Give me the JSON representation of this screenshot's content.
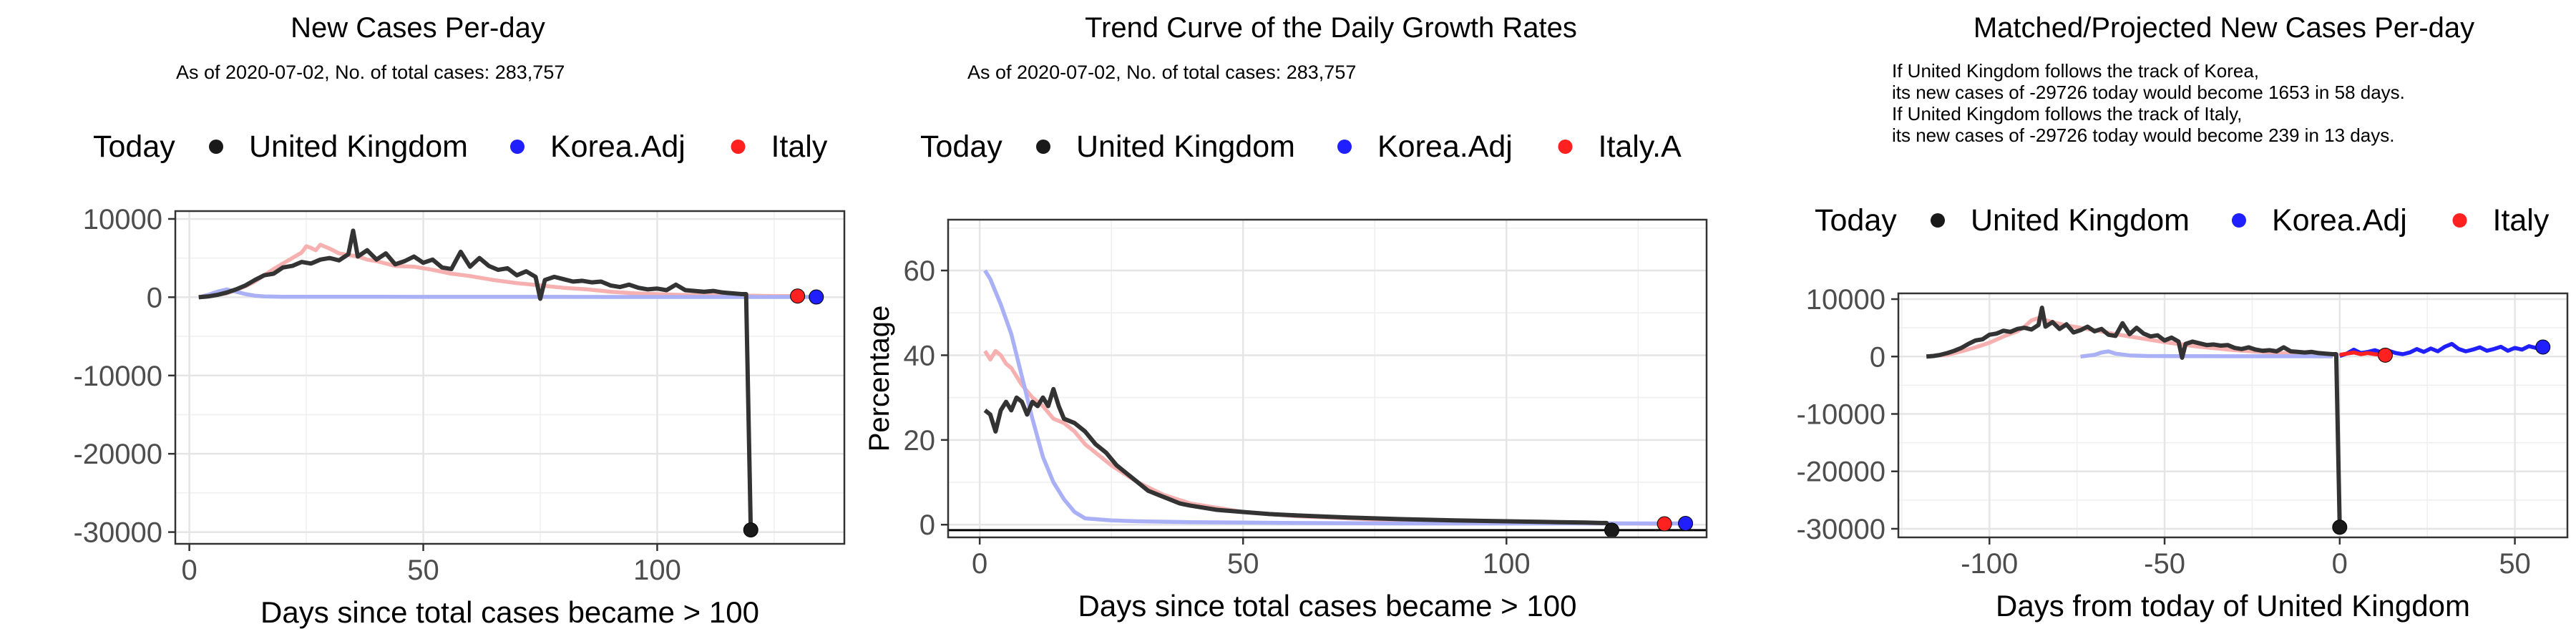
{
  "colors": {
    "uk": "#1a1a1a",
    "korea": "#1f1fff",
    "italy": "#ff2020",
    "uk_line": "#333333",
    "korea_line": "#aab0f5",
    "italy_line": "#f7b0b0",
    "grid": "#e5e5e5",
    "panel_border": "#333333"
  },
  "chart_data": [
    {
      "type": "line",
      "title": "New Cases Per-day",
      "subtitle": "As of 2020-07-02, No. of total cases: 283,757",
      "xlabel": "Days since total cases became > 100",
      "ylabel": "",
      "legend_title": "Today",
      "legend_position": "top",
      "legend_items": [
        "United Kingdom",
        "Korea.Adj",
        "Italy"
      ],
      "xlim": [
        -3,
        140
      ],
      "ylim": [
        -31500,
        11000
      ],
      "x_ticks": [
        0,
        50,
        100
      ],
      "y_ticks": [
        10000,
        0,
        -10000,
        -20000,
        -30000
      ],
      "y_tick_labels": [
        "10000",
        "0",
        "-10000",
        "-20000",
        "-30000"
      ],
      "grid": true,
      "series": [
        {
          "name": "Italy",
          "color_key": "italy_line",
          "x": [
            2,
            5,
            8,
            10,
            12,
            14,
            16,
            18,
            20,
            22,
            24,
            25,
            26,
            27,
            28,
            30,
            32,
            34,
            36,
            38,
            40,
            44,
            48,
            52,
            56,
            60,
            65,
            70,
            75,
            80,
            85,
            90,
            95,
            100,
            105,
            110,
            115,
            120,
            125,
            130
          ],
          "y": [
            0,
            200,
            500,
            900,
            1400,
            2000,
            2800,
            3600,
            4300,
            5000,
            5700,
            6500,
            6300,
            6000,
            6700,
            6200,
            5600,
            5400,
            5200,
            4800,
            4600,
            4000,
            3900,
            3500,
            3000,
            2700,
            2200,
            1800,
            1500,
            1200,
            1000,
            700,
            500,
            400,
            300,
            250,
            200,
            200,
            150,
            150
          ]
        },
        {
          "name": "Korea.Adj",
          "color_key": "korea_line",
          "x": [
            2,
            4,
            6,
            8,
            10,
            12,
            14,
            16,
            18,
            20,
            30,
            40,
            50,
            60,
            70,
            80,
            90,
            100,
            110,
            120,
            130,
            134
          ],
          "y": [
            0,
            300,
            700,
            1000,
            700,
            400,
            200,
            100,
            80,
            60,
            50,
            50,
            40,
            40,
            40,
            40,
            30,
            30,
            30,
            30,
            30,
            30
          ]
        },
        {
          "name": "United Kingdom",
          "color_key": "uk_line",
          "x": [
            2,
            4,
            6,
            8,
            10,
            12,
            14,
            16,
            18,
            20,
            22,
            24,
            26,
            28,
            30,
            32,
            34,
            35,
            36,
            38,
            40,
            42,
            44,
            46,
            48,
            50,
            52,
            54,
            56,
            58,
            60,
            62,
            64,
            66,
            68,
            70,
            72,
            74,
            75,
            76,
            78,
            80,
            82,
            84,
            86,
            88,
            90,
            92,
            94,
            96,
            98,
            100,
            102,
            104,
            106,
            108,
            110,
            112,
            114,
            116,
            118,
            119,
            120
          ],
          "y": [
            0,
            100,
            300,
            600,
            1000,
            1500,
            2200,
            2800,
            3000,
            3800,
            4000,
            4500,
            4300,
            4800,
            5000,
            4700,
            5500,
            8500,
            5200,
            6000,
            4800,
            5600,
            4200,
            4600,
            5200,
            4400,
            4800,
            3800,
            3600,
            5800,
            3900,
            5000,
            4000,
            3500,
            3700,
            2800,
            3300,
            2600,
            -200,
            2200,
            2600,
            2300,
            2000,
            2100,
            1900,
            2000,
            1500,
            1300,
            1600,
            1200,
            1000,
            1100,
            900,
            1600,
            900,
            800,
            700,
            800,
            600,
            500,
            400,
            400,
            -29726
          ]
        }
      ],
      "today_points": [
        {
          "name": "United Kingdom",
          "x": 120,
          "y": -29726,
          "color_key": "uk"
        },
        {
          "name": "Italy",
          "x": 130,
          "y": 150,
          "color_key": "italy"
        },
        {
          "name": "Korea.Adj",
          "x": 134,
          "y": 30,
          "color_key": "korea"
        }
      ]
    },
    {
      "type": "line",
      "title": "Trend Curve of the Daily Growth Rates",
      "subtitle": "As of 2020-07-02, No. of total cases: 283,757",
      "xlabel": "Days since total cases became > 100",
      "ylabel": "Percentage",
      "legend_title": "Today",
      "legend_position": "top",
      "legend_items": [
        "United Kingdom",
        "Korea.Adj",
        "Italy.A"
      ],
      "xlim": [
        -6,
        138
      ],
      "ylim": [
        -3,
        72
      ],
      "x_ticks": [
        0,
        50,
        100
      ],
      "y_ticks": [
        60,
        40,
        20,
        0
      ],
      "y_tick_labels": [
        "60",
        "40",
        "20",
        "0"
      ],
      "grid": true,
      "hline": -1.3,
      "series": [
        {
          "name": "Italy",
          "color_key": "italy_line",
          "x": [
            1,
            2,
            3,
            4,
            5,
            6,
            8,
            10,
            12,
            14,
            16,
            18,
            20,
            25,
            30,
            35,
            40,
            45,
            50,
            60,
            70,
            80,
            90,
            100,
            110,
            120,
            130
          ],
          "y": [
            41,
            39,
            41,
            40,
            38,
            37,
            33,
            30,
            28,
            25,
            24,
            22,
            19,
            14,
            10,
            7,
            5,
            4,
            3,
            2,
            1.5,
            1,
            0.8,
            0.6,
            0.4,
            0.3,
            0.2
          ]
        },
        {
          "name": "Korea.Adj",
          "color_key": "korea_line",
          "x": [
            1,
            2,
            4,
            6,
            8,
            10,
            12,
            14,
            16,
            18,
            20,
            25,
            30,
            40,
            50,
            60,
            80,
            100,
            120,
            134
          ],
          "y": [
            60,
            58,
            52,
            45,
            35,
            25,
            16,
            10,
            6,
            3,
            1.5,
            1,
            0.8,
            0.6,
            0.5,
            0.4,
            0.3,
            0.3,
            0.3,
            0.3
          ]
        },
        {
          "name": "United Kingdom",
          "color_key": "uk_line",
          "x": [
            1,
            2,
            3,
            4,
            5,
            6,
            7,
            8,
            9,
            10,
            11,
            12,
            13,
            14,
            15,
            16,
            18,
            20,
            22,
            24,
            26,
            28,
            30,
            32,
            34,
            36,
            38,
            40,
            45,
            50,
            55,
            60,
            70,
            80,
            90,
            100,
            110,
            115,
            118,
            119,
            120
          ],
          "y": [
            27,
            26,
            22,
            27,
            29,
            27,
            30,
            29,
            26,
            29,
            28,
            30,
            28,
            32,
            28,
            25,
            24,
            22,
            19,
            17,
            14,
            12,
            10,
            8,
            7,
            6,
            5,
            4.5,
            3.5,
            3,
            2.5,
            2.2,
            1.7,
            1.3,
            1,
            0.8,
            0.6,
            0.5,
            0.4,
            0.4,
            -1.3
          ]
        }
      ],
      "today_points": [
        {
          "name": "United Kingdom",
          "x": 120,
          "y": -1.3,
          "color_key": "uk"
        },
        {
          "name": "Italy",
          "x": 130,
          "y": 0.2,
          "color_key": "italy"
        },
        {
          "name": "Korea.Adj",
          "x": 134,
          "y": 0.3,
          "color_key": "korea"
        }
      ]
    },
    {
      "type": "line",
      "title": "Matched/Projected New Cases Per-day",
      "subtitle": "",
      "notes": [
        "If United Kingdom follows the track of Korea,",
        "its new cases of -29726 today would become 1653 in 58 days.",
        "If United Kingdom follows the track of Italy,",
        "its new cases of -29726 today would become 239 in 13 days."
      ],
      "xlabel": "Days from today of United Kingdom",
      "ylabel": "",
      "legend_title": "Today",
      "legend_position": "top",
      "legend_items": [
        "United Kingdom",
        "Korea.Adj",
        "Italy"
      ],
      "xlim": [
        -126,
        65
      ],
      "ylim": [
        -31500,
        11000
      ],
      "x_ticks": [
        -100,
        -50,
        0,
        50
      ],
      "y_ticks": [
        10000,
        0,
        -10000,
        -20000,
        -30000
      ],
      "y_tick_labels": [
        "10000",
        "0",
        "-10000",
        "-20000",
        "-30000"
      ],
      "grid": true,
      "series": [
        {
          "name": "Italy",
          "color_key": "italy_line",
          "x": [
            -118,
            -112,
            -108,
            -104,
            -100,
            -96,
            -92,
            -90,
            -88,
            -86,
            -82,
            -78,
            -74,
            -70,
            -64,
            -58,
            -50,
            -40,
            -30,
            -20,
            -10,
            -4
          ],
          "y": [
            0,
            300,
            900,
            1600,
            2400,
            3500,
            4400,
            5200,
            6300,
            6700,
            6000,
            5400,
            5000,
            4600,
            3900,
            3300,
            2500,
            1700,
            1100,
            700,
            400,
            300
          ]
        },
        {
          "name": "Korea.Adj",
          "color_key": "korea_line",
          "x": [
            -74,
            -70,
            -68,
            -66,
            -64,
            -60,
            -55,
            -50,
            -40,
            -30,
            -20,
            -10,
            -2
          ],
          "y": [
            0,
            300,
            700,
            900,
            500,
            200,
            100,
            80,
            60,
            50,
            40,
            40,
            30
          ]
        },
        {
          "name": "Korea.Adj projected",
          "color_key": "korea",
          "x": [
            0,
            2,
            4,
            6,
            8,
            10,
            12,
            14,
            16,
            18,
            20,
            22,
            24,
            26,
            28,
            30,
            32,
            34,
            36,
            38,
            40,
            42,
            44,
            46,
            48,
            50,
            52,
            54,
            56,
            58
          ],
          "y": [
            100,
            500,
            1200,
            600,
            800,
            1100,
            700,
            1000,
            600,
            400,
            700,
            1300,
            800,
            1400,
            900,
            1700,
            2200,
            1300,
            900,
            1200,
            1600,
            1000,
            1300,
            1700,
            1000,
            1500,
            1200,
            1800,
            1500,
            1653
          ]
        },
        {
          "name": "Italy projected",
          "color_key": "italy",
          "x": [
            0,
            2,
            4,
            6,
            8,
            10,
            12,
            13
          ],
          "y": [
            300,
            500,
            700,
            400,
            600,
            400,
            300,
            239
          ]
        },
        {
          "name": "United Kingdom",
          "color_key": "uk_line",
          "x": [
            -118,
            -116,
            -114,
            -112,
            -110,
            -108,
            -106,
            -104,
            -102,
            -100,
            -98,
            -96,
            -94,
            -92,
            -90,
            -88,
            -86,
            -85,
            -84,
            -82,
            -80,
            -78,
            -76,
            -74,
            -72,
            -70,
            -68,
            -66,
            -64,
            -62,
            -60,
            -58,
            -56,
            -54,
            -52,
            -50,
            -48,
            -46,
            -45,
            -44,
            -42,
            -40,
            -38,
            -36,
            -34,
            -32,
            -30,
            -28,
            -26,
            -24,
            -22,
            -20,
            -18,
            -16,
            -14,
            -12,
            -10,
            -8,
            -6,
            -4,
            -2,
            -1,
            0
          ],
          "y": [
            0,
            100,
            300,
            600,
            1000,
            1500,
            2200,
            2800,
            3000,
            3800,
            4000,
            4500,
            4300,
            4800,
            5000,
            4700,
            5500,
            8500,
            5200,
            6000,
            4800,
            5600,
            4200,
            4600,
            5200,
            4400,
            4800,
            3800,
            3600,
            5800,
            3900,
            5000,
            4000,
            3500,
            3700,
            2800,
            3300,
            2600,
            -200,
            2200,
            2600,
            2300,
            2000,
            2100,
            1900,
            2000,
            1500,
            1300,
            1600,
            1200,
            1000,
            1100,
            900,
            1600,
            900,
            800,
            700,
            800,
            600,
            500,
            400,
            400,
            -29726
          ]
        }
      ],
      "today_points": [
        {
          "name": "United Kingdom",
          "x": 0,
          "y": -29726,
          "color_key": "uk"
        },
        {
          "name": "Italy",
          "x": 13,
          "y": 239,
          "color_key": "italy"
        },
        {
          "name": "Korea.Adj",
          "x": 58,
          "y": 1653,
          "color_key": "korea"
        }
      ]
    }
  ]
}
